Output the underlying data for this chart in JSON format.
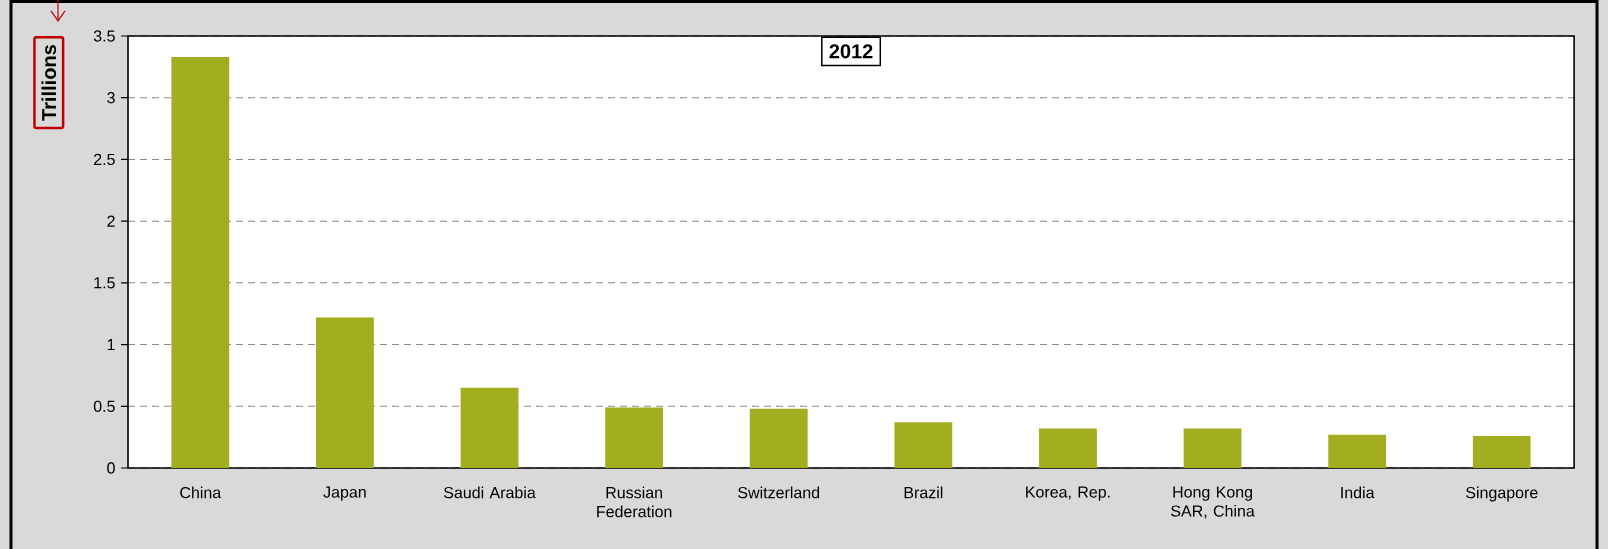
{
  "chart_data": {
    "type": "bar",
    "title": "2012",
    "ylabel": "Trillions",
    "categories": [
      "China",
      "Japan",
      "Saudi Arabia",
      "Russian Federation",
      "Switzerland",
      "Brazil",
      "Korea, Rep.",
      "Hong Kong SAR, China",
      "India",
      "Singapore"
    ],
    "values": [
      3.33,
      1.22,
      0.65,
      0.49,
      0.48,
      0.37,
      0.32,
      0.32,
      0.27,
      0.26
    ],
    "color": "#a2ad1f",
    "ylim": [
      0,
      3.5
    ],
    "yticks": [
      0,
      0.5,
      1,
      1.5,
      2,
      2.5,
      3,
      3.5
    ],
    "grid": "y"
  }
}
